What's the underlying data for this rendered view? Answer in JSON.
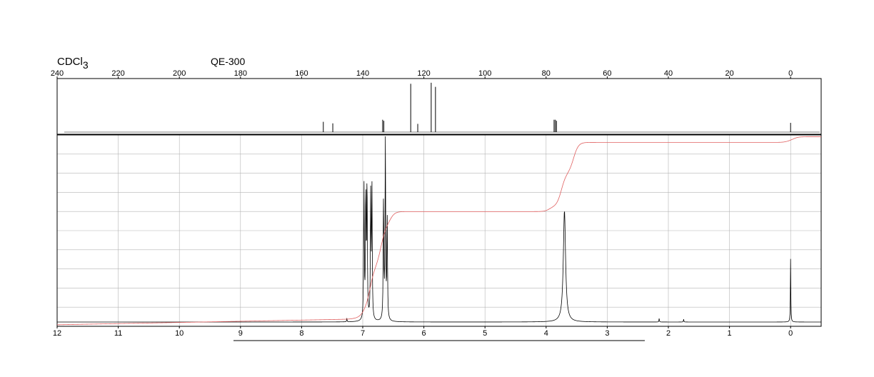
{
  "header": {
    "solvent_main": "CDCl",
    "solvent_sub": "3",
    "instrument": "QE-300"
  },
  "colors": {
    "trace": "#000000",
    "integral": "#e06060",
    "grid": "#b4b4b4",
    "frame": "#000000"
  },
  "chart_data": [
    {
      "type": "line",
      "id": "c13-spectrum",
      "nucleus": "13C",
      "x_axis_ticks": [
        "240",
        "220",
        "200",
        "180",
        "160",
        "140",
        "120",
        "100",
        "80",
        "60",
        "40",
        "20",
        "0"
      ],
      "xlim": [
        240,
        -10
      ],
      "x_reversed": true,
      "grid": false,
      "peaks": [
        {
          "ppm": 152.9,
          "height": 0.2
        },
        {
          "ppm": 149.8,
          "height": 0.17
        },
        {
          "ppm": 133.5,
          "height": 0.24
        },
        {
          "ppm": 133.1,
          "height": 0.22
        },
        {
          "ppm": 124.3,
          "height": 0.94
        },
        {
          "ppm": 122.0,
          "height": 0.16
        },
        {
          "ppm": 117.6,
          "height": 0.96
        },
        {
          "ppm": 116.2,
          "height": 0.88
        },
        {
          "ppm": 77.4,
          "height": 0.24
        },
        {
          "ppm": 77.0,
          "height": 0.24
        },
        {
          "ppm": 76.6,
          "height": 0.22
        },
        {
          "ppm": 0.0,
          "height": 0.18
        }
      ]
    },
    {
      "type": "line",
      "id": "h1-spectrum",
      "nucleus": "1H",
      "x_axis_ticks": [
        "12",
        "11",
        "10",
        "9",
        "8",
        "7",
        "6",
        "5",
        "4",
        "3",
        "2",
        "1",
        "0"
      ],
      "xlim": [
        12,
        -0.5
      ],
      "x_reversed": true,
      "grid": true,
      "peaks": [
        {
          "ppm": 6.98,
          "height": 0.73,
          "width": 0.006
        },
        {
          "ppm": 6.95,
          "height": 0.68,
          "width": 0.006
        },
        {
          "ppm": 6.93,
          "height": 0.75,
          "width": 0.006
        },
        {
          "ppm": 6.87,
          "height": 0.66,
          "width": 0.006
        },
        {
          "ppm": 6.85,
          "height": 0.72,
          "width": 0.006
        },
        {
          "ppm": 6.66,
          "height": 0.66,
          "width": 0.006
        },
        {
          "ppm": 6.63,
          "height": 0.97,
          "width": 0.006
        },
        {
          "ppm": 6.6,
          "height": 0.55,
          "width": 0.006
        },
        {
          "ppm": 3.7,
          "height": 0.6,
          "width": 0.022
        },
        {
          "ppm": 0.0,
          "height": 0.34,
          "width": 0.004
        },
        {
          "ppm": 7.26,
          "height": 0.02,
          "width": 0.004
        },
        {
          "ppm": 2.15,
          "height": 0.02,
          "width": 0.004
        },
        {
          "ppm": 1.75,
          "height": 0.015,
          "width": 0.004
        }
      ],
      "integral_steps": [
        {
          "ppm": 7.15,
          "level": 0.006
        },
        {
          "ppm": 7.0,
          "level": 0.05
        },
        {
          "ppm": 6.88,
          "level": 0.28
        },
        {
          "ppm": 6.7,
          "level": 0.5
        },
        {
          "ppm": 6.55,
          "level": 0.575
        },
        {
          "ppm": 3.95,
          "level": 0.6
        },
        {
          "ppm": 3.75,
          "level": 0.78
        },
        {
          "ppm": 3.55,
          "level": 0.945
        },
        {
          "ppm": 0.05,
          "level": 0.955
        },
        {
          "ppm": -0.05,
          "level": 0.975
        }
      ],
      "integral_baseline": -0.03
    }
  ]
}
